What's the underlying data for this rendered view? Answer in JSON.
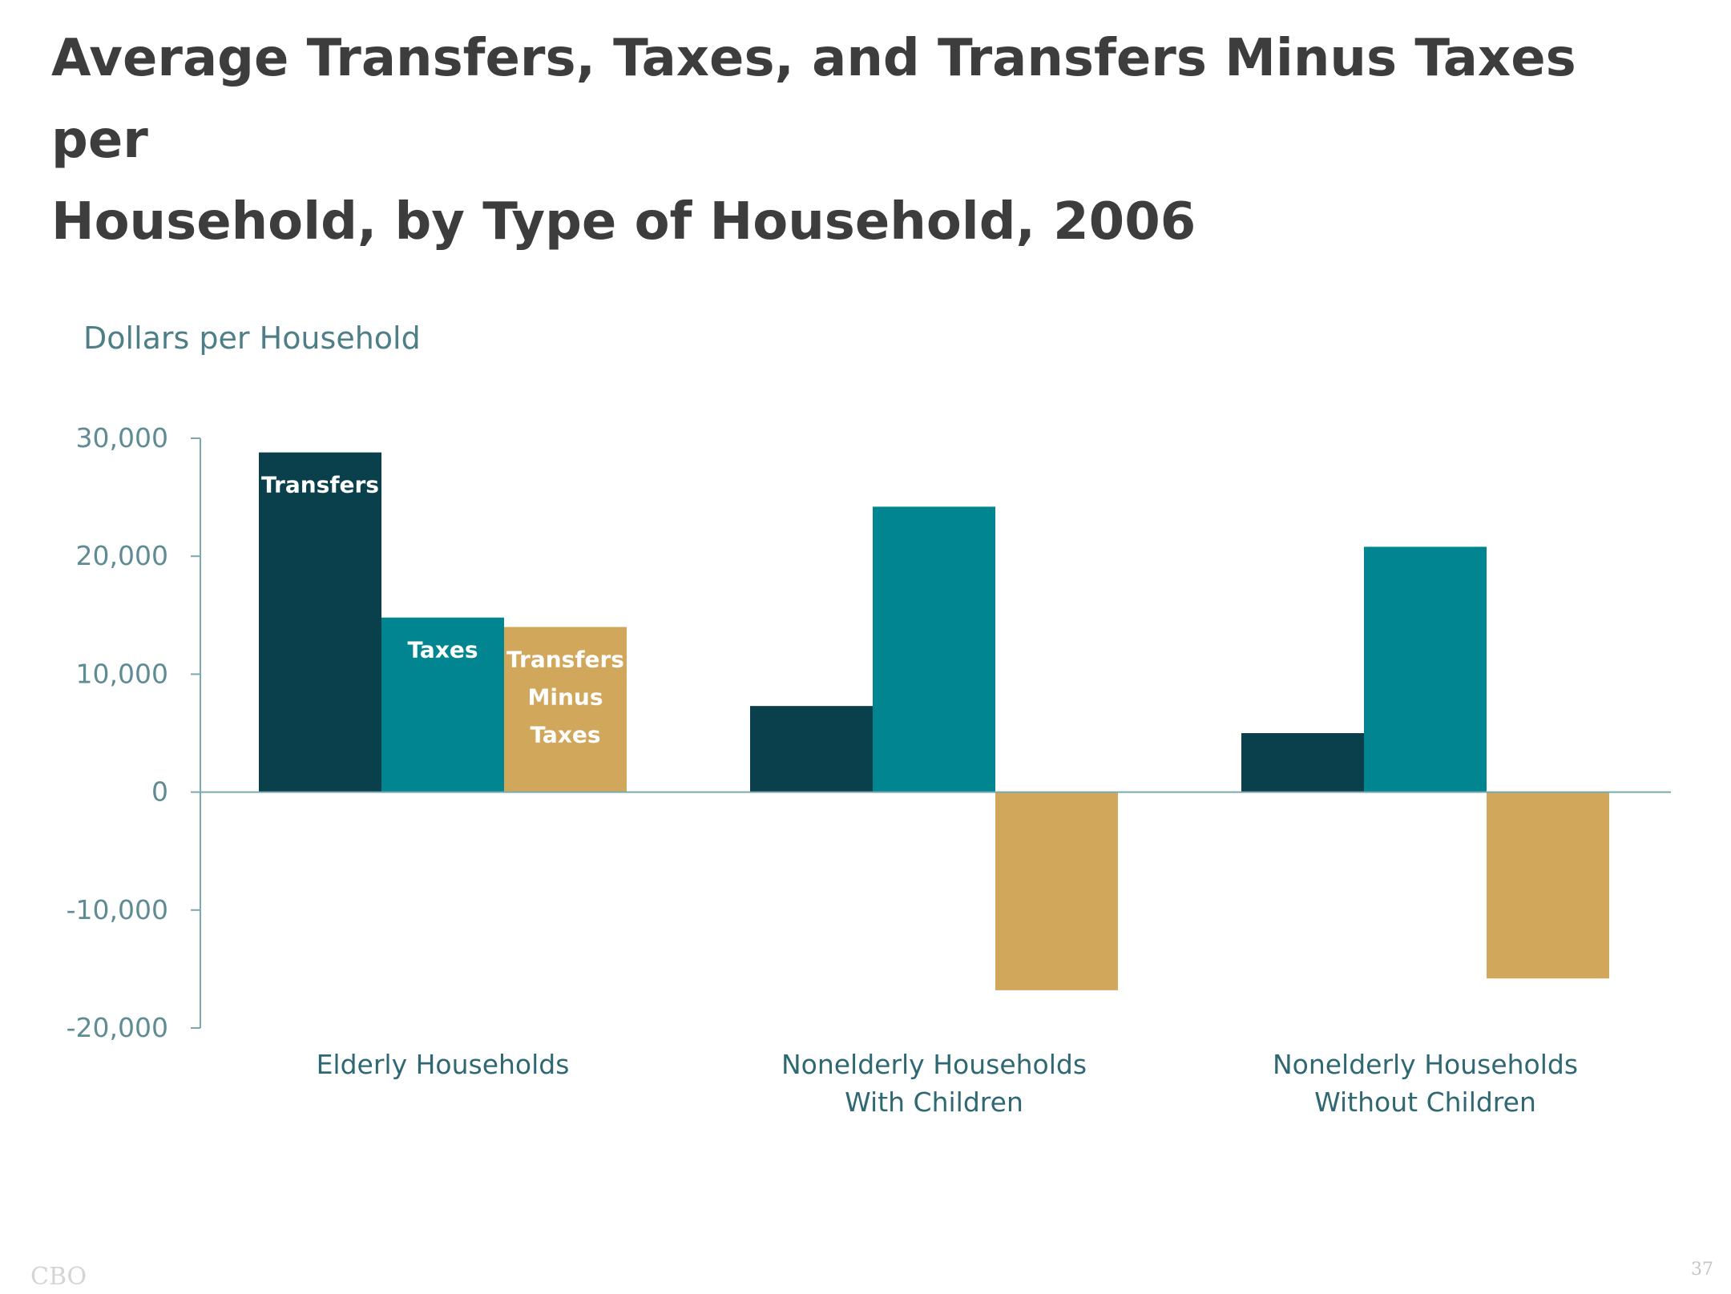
{
  "title_lines": [
    "Average Transfers, Taxes, and Transfers Minus Taxes per",
    "Household, by Type of Household, 2006"
  ],
  "footer": {
    "source": "CBO",
    "page_number": "37"
  },
  "colors": {
    "transfers": "#0a3f4c",
    "taxes": "#008591",
    "transfers_minus_taxes": "#d1a75b",
    "axis": "#7aa9b0"
  },
  "chart_data": {
    "type": "bar",
    "title": "Average Transfers, Taxes, and Transfers Minus Taxes per Household, by Type of Household, 2006",
    "ylabel": "Dollars per Household",
    "xlabel": "",
    "ylim": [
      -20000,
      30000
    ],
    "yticks": [
      30000,
      20000,
      10000,
      0,
      -10000,
      -20000
    ],
    "ytick_labels": [
      "30,000",
      "20,000",
      "10,000",
      "0",
      "-10,000",
      "-20,000"
    ],
    "categories": [
      [
        "Elderly Households"
      ],
      [
        "Nonelderly Households",
        "With Children"
      ],
      [
        "Nonelderly Households",
        "Without Children"
      ]
    ],
    "series": [
      {
        "name": "Transfers",
        "label_lines": [
          "Transfers"
        ],
        "values": [
          28800,
          7300,
          5000
        ]
      },
      {
        "name": "Taxes",
        "label_lines": [
          "Taxes"
        ],
        "values": [
          14800,
          24200,
          20800
        ]
      },
      {
        "name": "Transfers Minus Taxes",
        "label_lines": [
          "Transfers",
          "Minus",
          "Taxes"
        ],
        "values": [
          14000,
          -16800,
          -15800
        ]
      }
    ],
    "grid": false,
    "legend": "inline labels on first group"
  }
}
